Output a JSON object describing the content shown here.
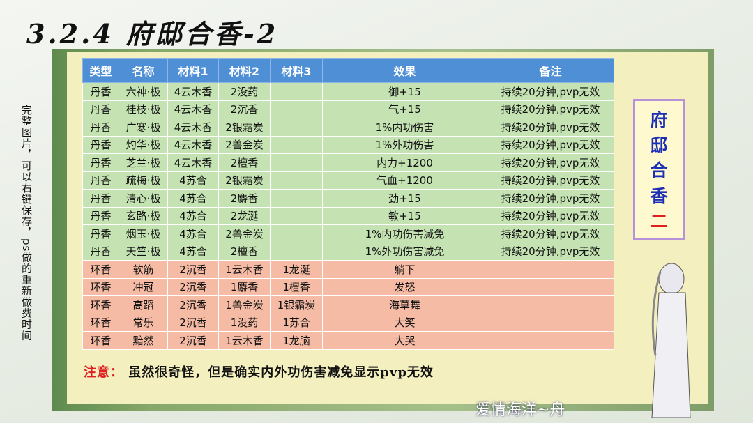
{
  "title": "3.2.4 府邸合香-2",
  "side_note": "完整图片，可以右键保存，ps做的重新做费时间",
  "table": {
    "headers": [
      "类型",
      "名称",
      "材料1",
      "材料2",
      "材料3",
      "效果",
      "备注"
    ],
    "rows": [
      [
        "丹香",
        "六神·极",
        "4云木香",
        "2没药",
        "",
        "御+15",
        "持续20分钟,pvp无效"
      ],
      [
        "丹香",
        "桂枝·极",
        "4云木香",
        "2沉香",
        "",
        "气+15",
        "持续20分钟,pvp无效"
      ],
      [
        "丹香",
        "广寒·极",
        "4云木香",
        "2银霜炭",
        "",
        "1%内功伤害",
        "持续20分钟,pvp无效"
      ],
      [
        "丹香",
        "灼华·极",
        "4云木香",
        "2兽金炭",
        "",
        "1%外功伤害",
        "持续20分钟,pvp无效"
      ],
      [
        "丹香",
        "芝兰·极",
        "4云木香",
        "2檀香",
        "",
        "内力+1200",
        "持续20分钟,pvp无效"
      ],
      [
        "丹香",
        "疏梅·极",
        "4苏合",
        "2银霜炭",
        "",
        "气血+1200",
        "持续20分钟,pvp无效"
      ],
      [
        "丹香",
        "清心·极",
        "4苏合",
        "2麝香",
        "",
        "劲+15",
        "持续20分钟,pvp无效"
      ],
      [
        "丹香",
        "玄路·极",
        "4苏合",
        "2龙涎",
        "",
        "敏+15",
        "持续20分钟,pvp无效"
      ],
      [
        "丹香",
        "烟玉·极",
        "4苏合",
        "2兽金炭",
        "",
        "1%内功伤害减免",
        "持续20分钟,pvp无效"
      ],
      [
        "丹香",
        "天竺·极",
        "4苏合",
        "2檀香",
        "",
        "1%外功伤害减免",
        "持续20分钟,pvp无效"
      ],
      [
        "环香",
        "软筋",
        "2沉香",
        "1云木香",
        "1龙涎",
        "躺下",
        ""
      ],
      [
        "环香",
        "冲冠",
        "2沉香",
        "1麝香",
        "1檀香",
        "发怒",
        ""
      ],
      [
        "环香",
        "高蹈",
        "2沉香",
        "1兽金炭",
        "1银霜炭",
        "海草舞",
        ""
      ],
      [
        "环香",
        "常乐",
        "2沉香",
        "1没药",
        "1苏合",
        "大笑",
        ""
      ],
      [
        "环香",
        "黯然",
        "2沉香",
        "1云木香",
        "1龙脑",
        "大哭",
        ""
      ]
    ]
  },
  "badge": [
    "府",
    "邸",
    "合",
    "香",
    "二"
  ],
  "note": {
    "label": "注意：",
    "text": "虽然很奇怪，但是确实内外功伤害减免显示pvp无效"
  },
  "signature": "爱情海洋~舟",
  "colors": {
    "header": "#4f8fd6",
    "dan_row": "#c4e2b2",
    "huan_row": "#f6bba5",
    "accent_red": "#e02020",
    "badge_blue": "#1b2fb5"
  }
}
